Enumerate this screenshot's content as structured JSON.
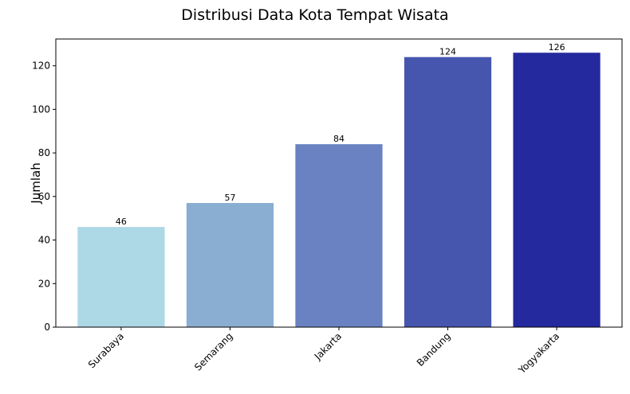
{
  "chart_data": {
    "type": "bar",
    "title": "Distribusi Data Kota Tempat Wisata",
    "xlabel": "",
    "ylabel": "Jumlah",
    "categories": [
      "Surabaya",
      "Semarang",
      "Jakarta",
      "Bandung",
      "Yogyakarta"
    ],
    "values": [
      46,
      57,
      84,
      124,
      126
    ],
    "colors": [
      "#add8e6",
      "#8aadd2",
      "#6a82c2",
      "#4656ae",
      "#25299e"
    ],
    "ylim": [
      0,
      132.3
    ],
    "yticks": [
      0,
      20,
      40,
      60,
      80,
      100,
      120
    ],
    "grid": false,
    "legend": "none",
    "data_labels": true,
    "xtick_rotation": 45
  }
}
